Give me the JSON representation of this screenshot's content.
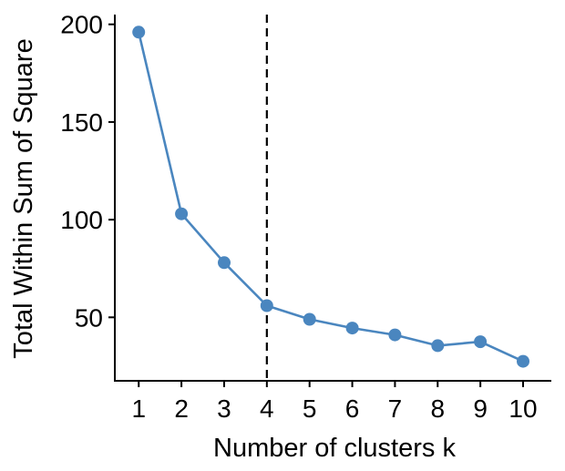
{
  "chart_data": {
    "type": "line",
    "x": [
      1,
      2,
      3,
      4,
      5,
      6,
      7,
      8,
      9,
      10
    ],
    "series": [
      {
        "values": [
          196,
          103,
          78,
          56,
          49,
          44.5,
          41,
          35.5,
          37.5,
          27.5
        ],
        "color": "#4a86bf"
      }
    ],
    "xlabel": "Number of clusters k",
    "ylabel": "Total Within Sum of Square",
    "xticks": [
      "1",
      "2",
      "3",
      "4",
      "5",
      "6",
      "7",
      "8",
      "9",
      "10"
    ],
    "yticks": [
      "50",
      "100",
      "150",
      "200"
    ],
    "xlim": [
      0.44,
      10.64
    ],
    "ylim": [
      17.5,
      205
    ],
    "vline": {
      "x": 4,
      "style": "dashed",
      "color": "#000000"
    },
    "grid": false,
    "legend": "none",
    "marker": "filled-circle"
  }
}
